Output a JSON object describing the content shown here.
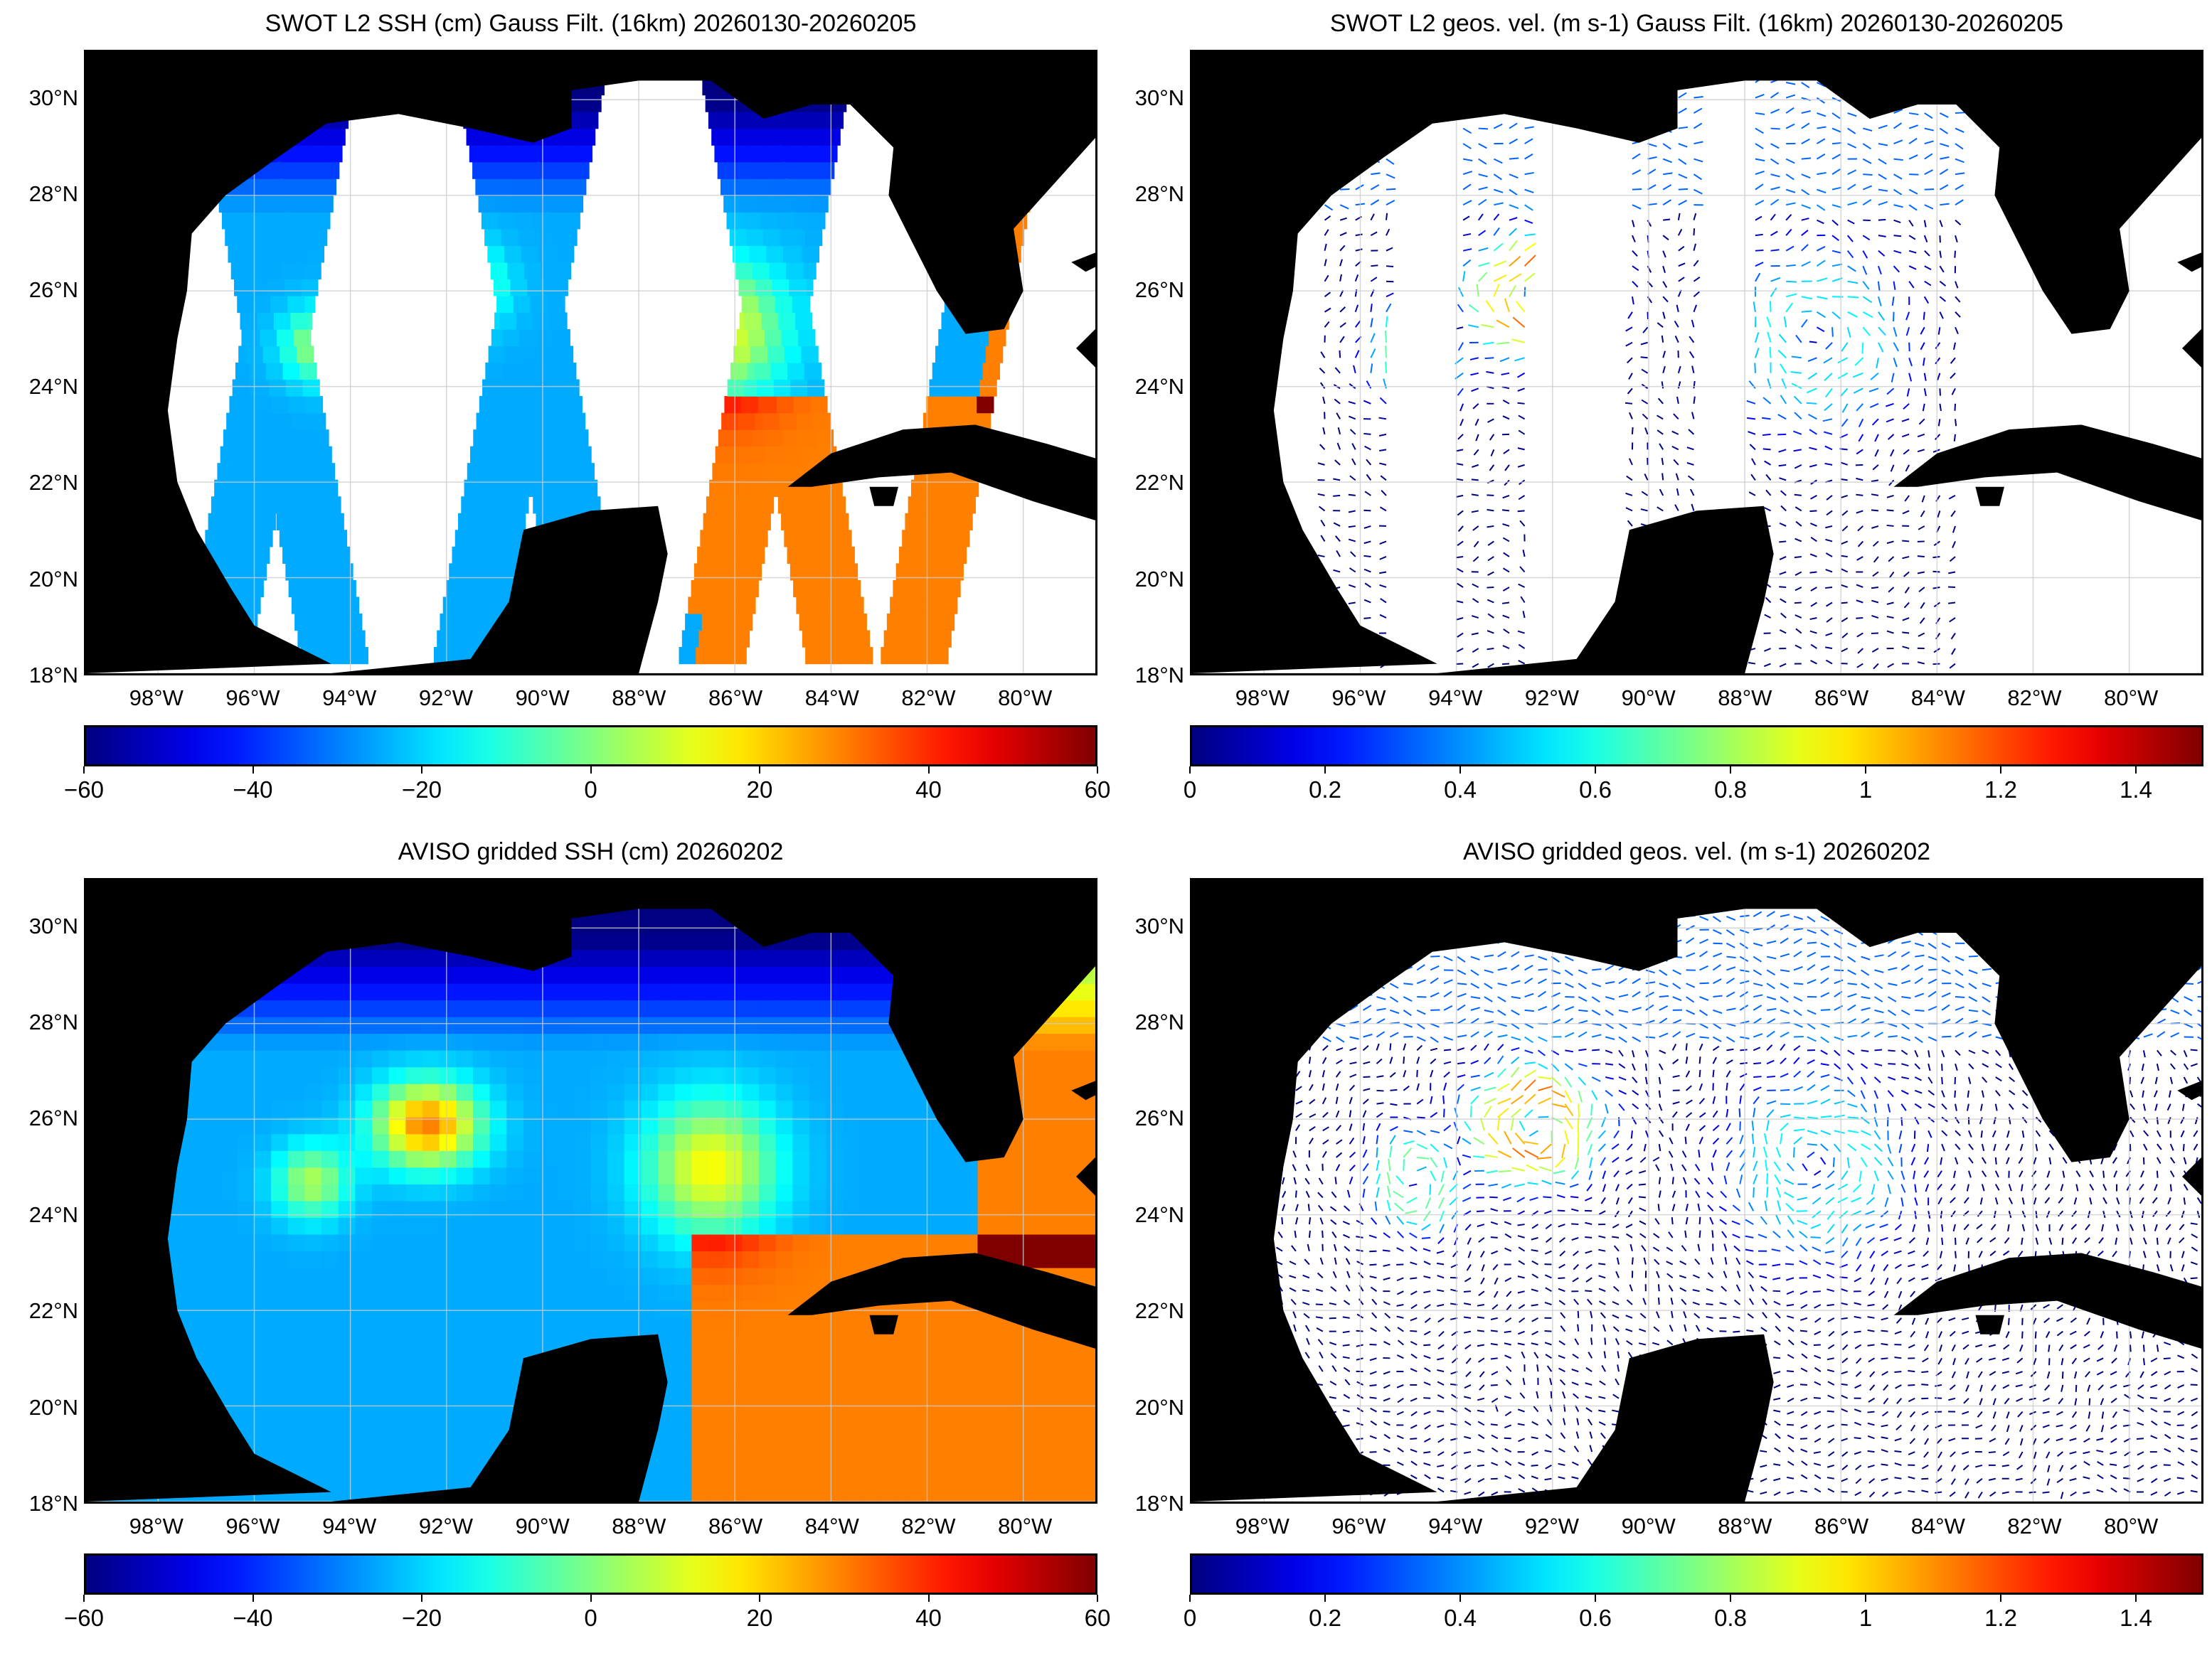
{
  "panels": [
    {
      "id": "swot-ssh",
      "title": "SWOT L2 SSH (cm) Gauss Filt. (16km) 20260130-20260205",
      "kind": "ssh-swaths",
      "colorbar": {
        "ticks": [
          "−60",
          "−40",
          "−20",
          "0",
          "20",
          "40",
          "60"
        ],
        "min": -60,
        "max": 60
      }
    },
    {
      "id": "swot-vel",
      "title": "SWOT L2 geos. vel. (m s-1) Gauss Filt. (16km) 20260130-20260205",
      "kind": "vel-swaths",
      "colorbar": {
        "ticks": [
          "0",
          "0.2",
          "0.4",
          "0.6",
          "0.8",
          "1",
          "1.2",
          "1.4"
        ],
        "min": 0,
        "max": 1.5
      }
    },
    {
      "id": "aviso-ssh",
      "title": "AVISO gridded SSH (cm) 20260202",
      "kind": "ssh-grid",
      "colorbar": {
        "ticks": [
          "−60",
          "−40",
          "−20",
          "0",
          "20",
          "40",
          "60"
        ],
        "min": -60,
        "max": 60
      }
    },
    {
      "id": "aviso-vel",
      "title": "AVISO gridded geos. vel. (m s-1)  20260202",
      "kind": "vel-grid",
      "colorbar": {
        "ticks": [
          "0",
          "0.2",
          "0.4",
          "0.6",
          "0.8",
          "1",
          "1.2",
          "1.4"
        ],
        "min": 0,
        "max": 1.5
      }
    }
  ],
  "map": {
    "lat_labels": [
      "30°N",
      "28°N",
      "26°N",
      "24°N",
      "22°N",
      "20°N",
      "18°N"
    ],
    "lon_labels": [
      "98°W",
      "96°W",
      "94°W",
      "92°W",
      "90°W",
      "88°W",
      "86°W",
      "84°W",
      "82°W",
      "80°W"
    ],
    "lat_range": [
      18,
      31
    ],
    "lon_range": [
      -99.5,
      -78.5
    ],
    "land_color": "#000000",
    "no_data_color": "#ffffff",
    "grid_color": "#cccccc",
    "colormap": "jet"
  }
}
